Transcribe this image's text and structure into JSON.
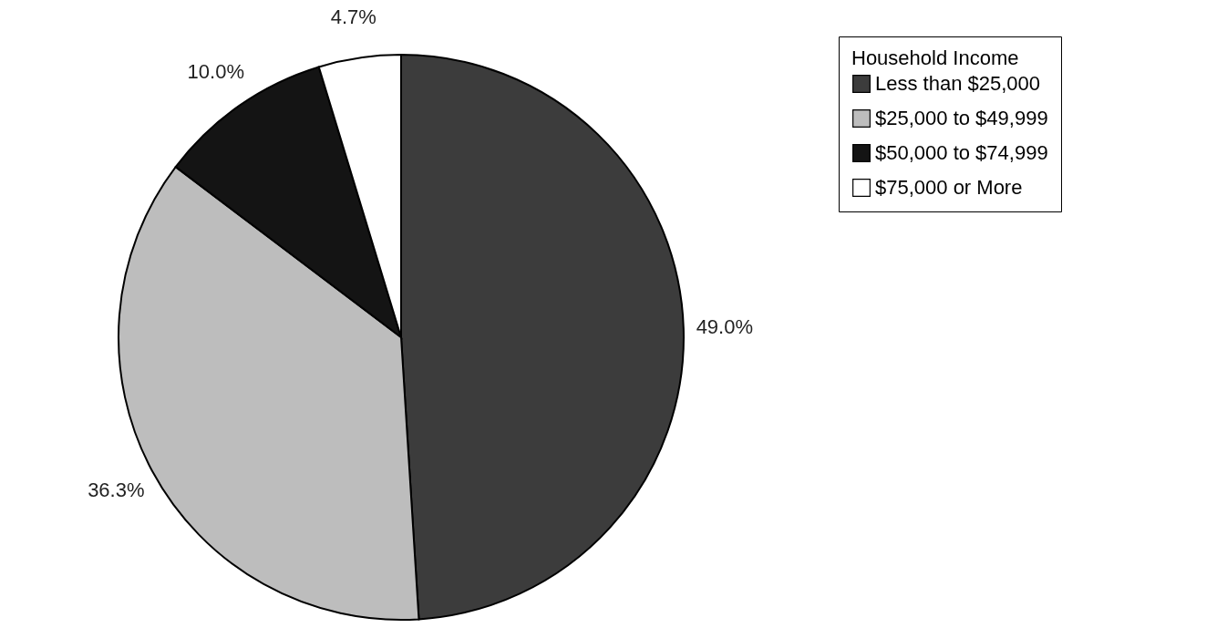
{
  "chart_data": {
    "type": "pie",
    "legend_title": "Household Income",
    "categories": [
      "Less than $25,000",
      "$25,000 to $49,999",
      "$50,000 to $74,999",
      "$75,000 or More"
    ],
    "values": [
      49.0,
      36.3,
      10.0,
      4.7
    ],
    "colors": [
      "#3c3c3c",
      "#bdbdbd",
      "#141414",
      "#ffffff"
    ],
    "value_labels": [
      "49.0%",
      "36.3%",
      "10.0%",
      "4.7%"
    ],
    "legend": "right"
  }
}
